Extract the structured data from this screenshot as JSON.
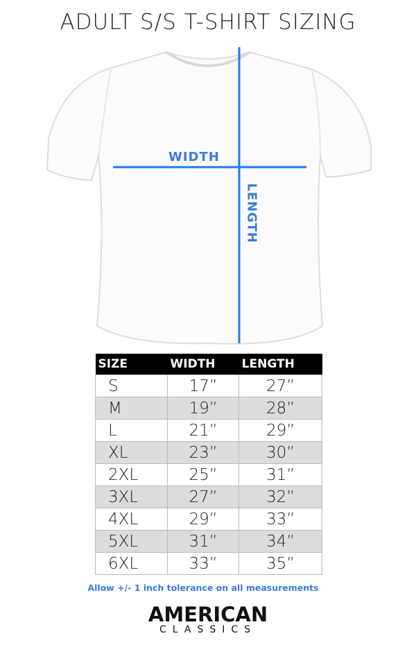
{
  "title": "ADULT S/S T-SHIRT SIZING",
  "diagram": {
    "width_label": "WIDTH",
    "length_label": "LENGTH",
    "line_color": "#1e7be6"
  },
  "table": {
    "headers": [
      "SIZE",
      "WIDTH",
      "LENGTH"
    ],
    "rows": [
      [
        "S",
        "17”",
        "27”"
      ],
      [
        "M",
        "19”",
        "28”"
      ],
      [
        "L",
        "21”",
        "29”"
      ],
      [
        "XL",
        "23”",
        "30”"
      ],
      [
        "2XL",
        "25”",
        "31”"
      ],
      [
        "3XL",
        "27”",
        "32”"
      ],
      [
        "4XL",
        "29”",
        "33”"
      ],
      [
        "5XL",
        "31”",
        "34”"
      ],
      [
        "6XL",
        "33”",
        "35”"
      ]
    ]
  },
  "note": "Allow +/- 1 inch tolerance on all measurements",
  "logo": {
    "line1": "AMERICAN",
    "line2": "CLASSICS"
  }
}
